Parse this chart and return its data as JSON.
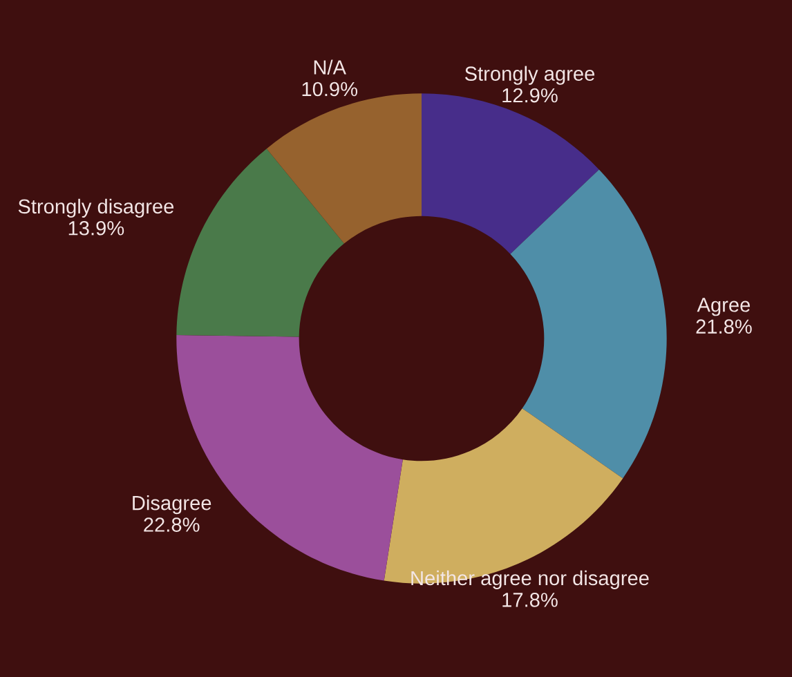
{
  "chart_data": {
    "type": "donut",
    "categories": [
      "Strongly agree",
      "Agree",
      "Neither agree nor disagree",
      "Disagree",
      "Strongly disagree",
      "N/A"
    ],
    "values": [
      12.9,
      21.8,
      17.8,
      22.8,
      13.9,
      10.9
    ],
    "value_labels": [
      "12.9%",
      "21.8%",
      "17.8%",
      "22.8%",
      "13.9%",
      "10.9%"
    ],
    "colors": [
      "#472d8a",
      "#4f8ea8",
      "#cfae5f",
      "#9b4f9b",
      "#4a7a4a",
      "#96622e"
    ],
    "legend": false
  }
}
